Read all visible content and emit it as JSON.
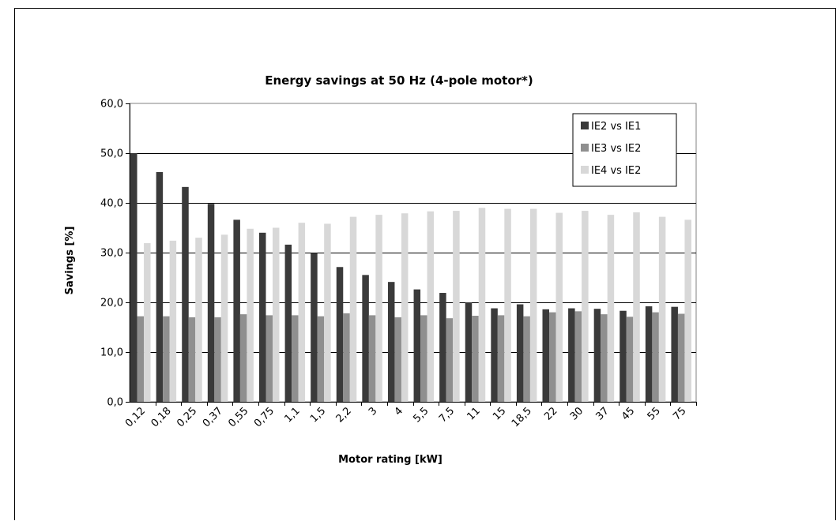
{
  "chart_data": {
    "type": "bar",
    "title": "Energy savings at 50 Hz (4-pole motor*)",
    "xlabel": "Motor rating [kW]",
    "ylabel": "Savings [%]",
    "ylim": [
      0,
      60
    ],
    "yticks": [
      "0,0",
      "10,0",
      "20,0",
      "30,0",
      "40,0",
      "50,0",
      "60,0"
    ],
    "grid": true,
    "legend_position": "top-right",
    "categories": [
      "0,12",
      "0,18",
      "0,25",
      "0,37",
      "0,55",
      "0,75",
      "1,1",
      "1,5",
      "2,2",
      "3",
      "4",
      "5,5",
      "7,5",
      "11",
      "15",
      "18,5",
      "22",
      "30",
      "37",
      "45",
      "55",
      "75"
    ],
    "series": [
      {
        "name": "IE2 vs IE1",
        "color": "#3a3a3a",
        "values": [
          50.0,
          46.2,
          43.2,
          39.8,
          36.6,
          34.0,
          31.6,
          29.9,
          27.1,
          25.5,
          24.1,
          22.6,
          21.9,
          20.0,
          18.8,
          19.6,
          18.6,
          18.8,
          18.7,
          18.3,
          19.2,
          19.1
        ]
      },
      {
        "name": "IE3 vs IE2",
        "color": "#8f8f8f",
        "values": [
          17.2,
          17.2,
          17.0,
          17.0,
          17.6,
          17.4,
          17.4,
          17.2,
          17.8,
          17.4,
          17.0,
          17.4,
          16.8,
          17.3,
          17.4,
          17.2,
          18.0,
          18.2,
          17.6,
          17.1,
          18.0,
          17.7
        ]
      },
      {
        "name": "IE4 vs IE2",
        "color": "#d8d8d8",
        "values": [
          31.9,
          32.4,
          33.0,
          33.6,
          34.8,
          35.0,
          36.0,
          35.8,
          37.2,
          37.6,
          37.9,
          38.3,
          38.4,
          39.0,
          38.8,
          38.8,
          38.0,
          38.4,
          37.6,
          38.1,
          37.2,
          36.6
        ]
      }
    ]
  }
}
